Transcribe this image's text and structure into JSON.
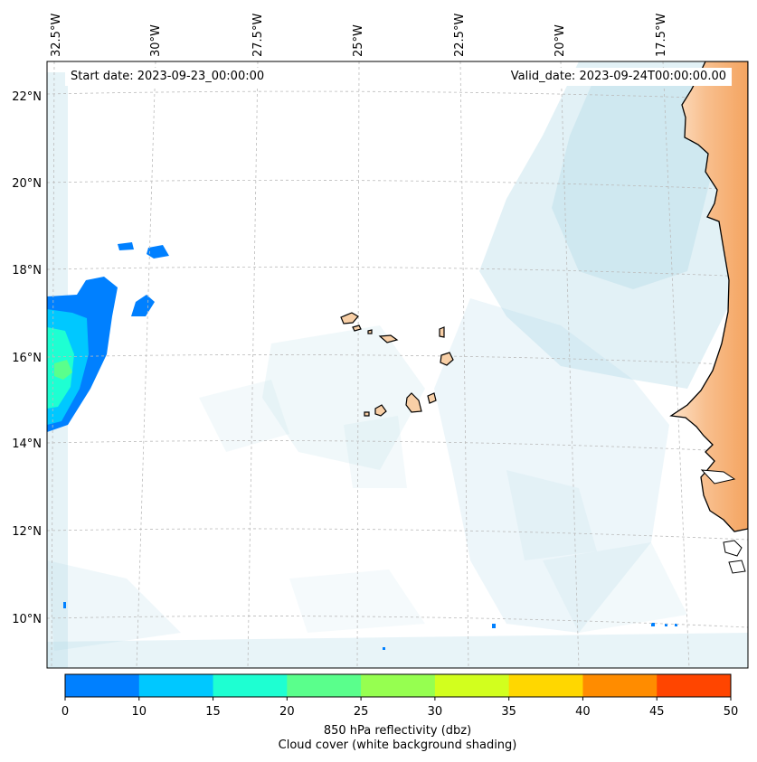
{
  "map": {
    "start_date_label": "Start date: 2023-09-23_00:00:00",
    "valid_date_label": "Valid_date: 2023-09-24T00:00:00.00",
    "lon_labels": [
      "32.5°W",
      "30°W",
      "27.5°W",
      "25°W",
      "22.5°W",
      "20°W",
      "17.5°W"
    ],
    "lat_labels": [
      "22°N",
      "20°N",
      "18°N",
      "16°N",
      "14°N",
      "12°N",
      "10°N"
    ],
    "land_color": "#f4a460",
    "cloud_color": "#add8e6",
    "coast_color": "#000000"
  },
  "colorbar": {
    "ticks": [
      "0",
      "10",
      "15",
      "20",
      "25",
      "30",
      "35",
      "40",
      "45",
      "50"
    ],
    "colors": [
      "#0080ff",
      "#00c8ff",
      "#1effd2",
      "#5aff8c",
      "#96ff50",
      "#d2ff1e",
      "#ffd700",
      "#ff8c00",
      "#ff4500"
    ],
    "label": "850 hPa reflectivity (dbz)",
    "sublabel": "Cloud cover (white background shading)"
  }
}
